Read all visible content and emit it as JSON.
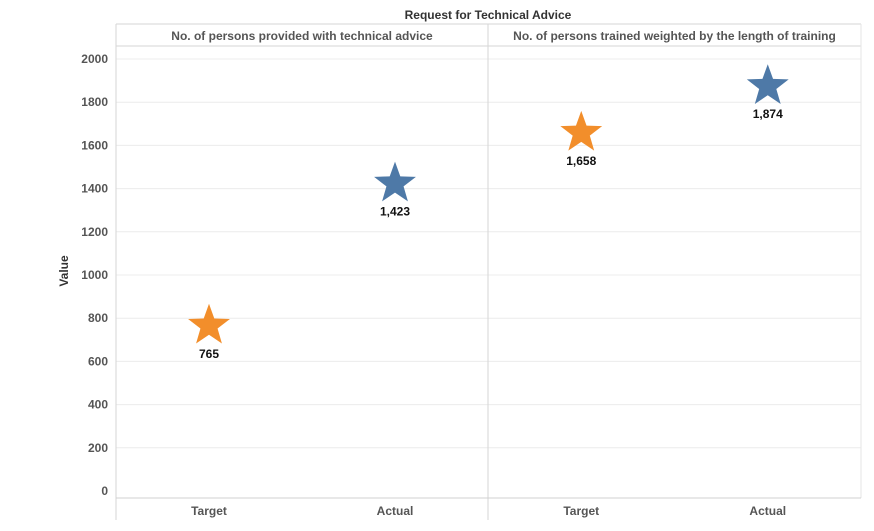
{
  "chart_data": {
    "type": "scatter",
    "title": "Request for Technical Advice",
    "ylabel": "Value",
    "ylim": [
      0,
      2000
    ],
    "yticks": [
      0,
      200,
      400,
      600,
      800,
      1000,
      1200,
      1400,
      1600,
      1800,
      2000
    ],
    "grid": true,
    "marker": "star",
    "colors": {
      "Target": "#F28E2B",
      "Actual": "#4E79A7"
    },
    "panels": [
      {
        "label": "No. of persons provided with technical advice",
        "points": [
          {
            "category": "Target",
            "value": 765,
            "label": "765"
          },
          {
            "category": "Actual",
            "value": 1423,
            "label": "1,423"
          }
        ]
      },
      {
        "label": "No. of persons trained weighted by the length of training",
        "points": [
          {
            "category": "Target",
            "value": 1658,
            "label": "1,658"
          },
          {
            "category": "Actual",
            "value": 1874,
            "label": "1,874"
          }
        ]
      }
    ]
  }
}
